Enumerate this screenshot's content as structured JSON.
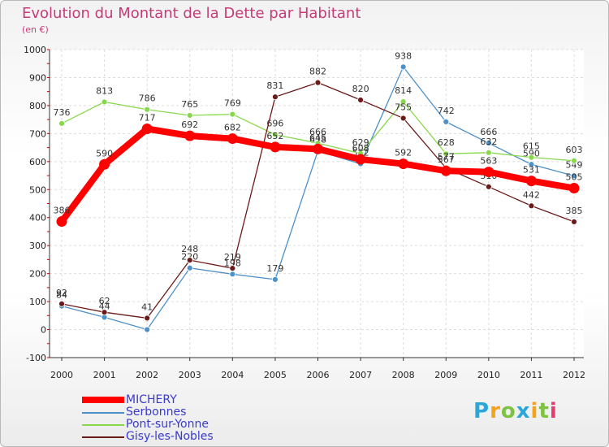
{
  "header": {
    "title": "Evolution du Montant de la Dette par Habitant",
    "unit": "(en €)"
  },
  "logo": {
    "letters": [
      "P",
      "r",
      "o",
      "x",
      "i",
      "t",
      "i"
    ],
    "colors": [
      "#2aa7d8",
      "#f2a31b",
      "#7dc242",
      "#2aa7d8",
      "#f2a31b",
      "#7dc242",
      "#e33b6d"
    ]
  },
  "chart_data": {
    "type": "line",
    "title": "Evolution du Montant de la Dette par Habitant",
    "ylabel": "(en €)",
    "xlabel": "",
    "ylim": [
      -100,
      1000
    ],
    "yticks": [
      -100,
      0,
      100,
      200,
      300,
      400,
      500,
      600,
      700,
      800,
      900,
      1000
    ],
    "categories": [
      "2000",
      "2001",
      "2002",
      "2003",
      "2004",
      "2005",
      "2006",
      "2007",
      "2008",
      "2009",
      "2010",
      "2011",
      "2012"
    ],
    "grid": true,
    "series": [
      {
        "name": "MICHERY",
        "color": "#ff0000",
        "values": [
          386,
          590,
          717,
          692,
          682,
          652,
          645,
          608,
          592,
          567,
          563,
          531,
          505
        ]
      },
      {
        "name": "Serbonnes",
        "color": "#4e90c8",
        "values": [
          84,
          44,
          0,
          220,
          198,
          179,
          638,
          592,
          938,
          742,
          666,
          590,
          549
        ]
      },
      {
        "name": "Pont-sur-Yonne",
        "color": "#88d84c",
        "values": [
          736,
          813,
          786,
          765,
          769,
          696,
          666,
          629,
          814,
          628,
          632,
          615,
          603
        ]
      },
      {
        "name": "Gisy-les-Nobles",
        "color": "#6b1a1a",
        "values": [
          92,
          62,
          41,
          248,
          219,
          831,
          882,
          820,
          755,
          577,
          510,
          442,
          385
        ]
      }
    ]
  }
}
